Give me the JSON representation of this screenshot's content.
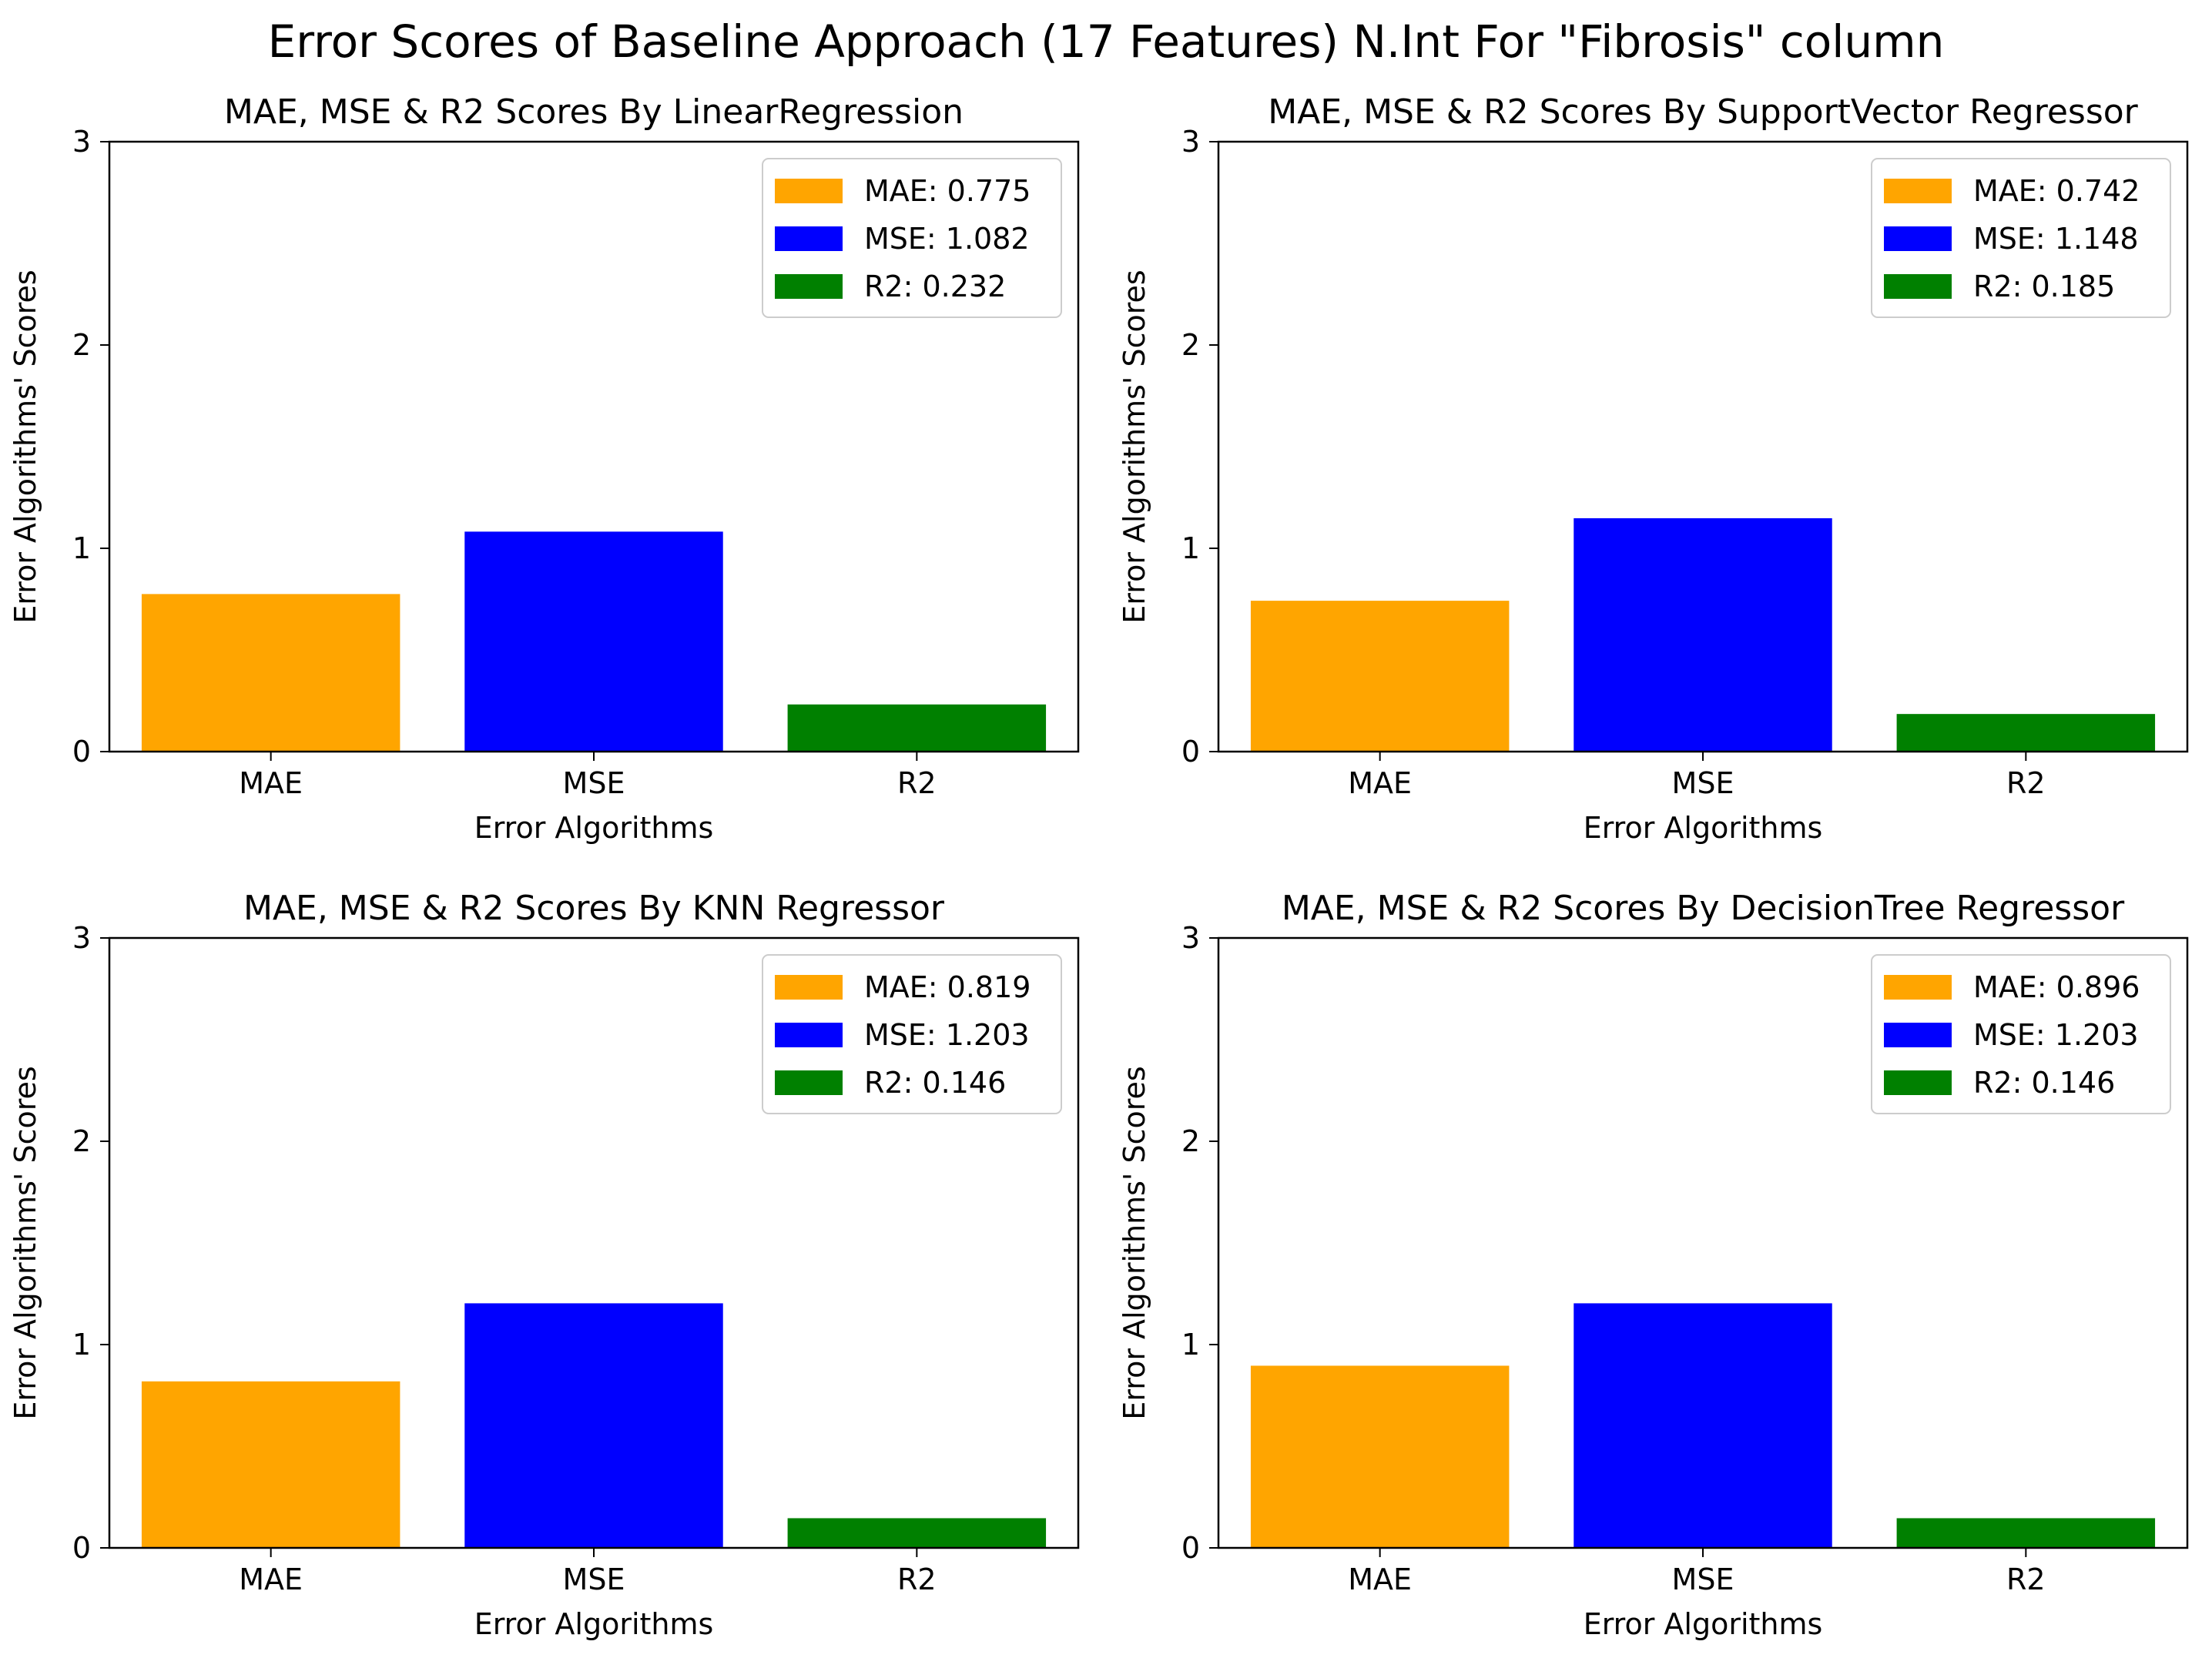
{
  "suptitle": "Error Scores of Baseline Approach (17 Features) N.Int For \"Fibrosis\" column",
  "chart_data": [
    {
      "type": "bar",
      "title": "MAE, MSE & R2 Scores By LinearRegression",
      "xlabel": "Error Algorithms",
      "ylabel": "Error Algorithms' Scores",
      "categories": [
        "MAE",
        "MSE",
        "R2"
      ],
      "values": [
        0.775,
        1.082,
        0.232
      ],
      "colors": [
        "#ffa500",
        "#0000ff",
        "#008000"
      ],
      "legend": [
        "MAE: 0.775",
        "MSE: 1.082",
        "R2: 0.232"
      ],
      "legend_position": "top-right",
      "ylim": [
        0,
        3
      ],
      "yticks": [
        "0",
        "1",
        "2",
        "3"
      ],
      "grid": false
    },
    {
      "type": "bar",
      "title": "MAE, MSE & R2 Scores By SupportVector Regressor",
      "xlabel": "Error Algorithms",
      "ylabel": "Error Algorithms' Scores",
      "categories": [
        "MAE",
        "MSE",
        "R2"
      ],
      "values": [
        0.742,
        1.148,
        0.185
      ],
      "colors": [
        "#ffa500",
        "#0000ff",
        "#008000"
      ],
      "legend": [
        "MAE: 0.742",
        "MSE: 1.148",
        "R2: 0.185"
      ],
      "legend_position": "top-right",
      "ylim": [
        0,
        3
      ],
      "yticks": [
        "0",
        "1",
        "2",
        "3"
      ],
      "grid": false
    },
    {
      "type": "bar",
      "title": "MAE, MSE & R2 Scores By KNN Regressor",
      "xlabel": "Error Algorithms",
      "ylabel": "Error Algorithms' Scores",
      "categories": [
        "MAE",
        "MSE",
        "R2"
      ],
      "values": [
        0.819,
        1.203,
        0.146
      ],
      "colors": [
        "#ffa500",
        "#0000ff",
        "#008000"
      ],
      "legend": [
        "MAE: 0.819",
        "MSE: 1.203",
        "R2: 0.146"
      ],
      "legend_position": "top-right",
      "ylim": [
        0,
        3
      ],
      "yticks": [
        "0",
        "1",
        "2",
        "3"
      ],
      "grid": false
    },
    {
      "type": "bar",
      "title": "MAE, MSE & R2 Scores By DecisionTree Regressor",
      "xlabel": "Error Algorithms",
      "ylabel": "Error Algorithms' Scores",
      "categories": [
        "MAE",
        "MSE",
        "R2"
      ],
      "values": [
        0.896,
        1.203,
        0.146
      ],
      "colors": [
        "#ffa500",
        "#0000ff",
        "#008000"
      ],
      "legend": [
        "MAE: 0.896",
        "MSE: 1.203",
        "R2: 0.146"
      ],
      "legend_position": "top-right",
      "ylim": [
        0,
        3
      ],
      "yticks": [
        "0",
        "1",
        "2",
        "3"
      ],
      "grid": false
    }
  ]
}
